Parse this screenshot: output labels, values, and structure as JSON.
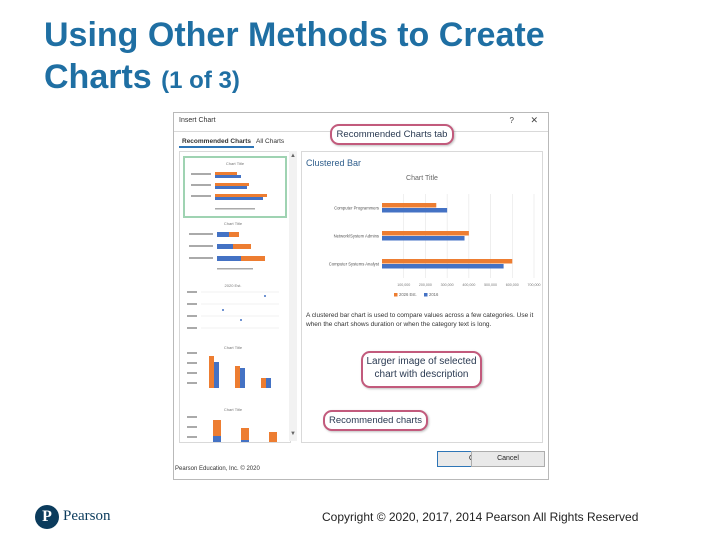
{
  "slide": {
    "title": "Using Other Methods to Create",
    "title_line2": "Charts",
    "title_suffix": "(1 of 3)"
  },
  "dialog": {
    "title": "Insert Chart",
    "help_glyph": "?",
    "close_glyph": "✕",
    "tabs": [
      {
        "label": "Recommended Charts",
        "active": true
      },
      {
        "label": "All Charts",
        "active": false
      }
    ],
    "thumbnail_titles": [
      "Chart Title",
      "Chart Title",
      "2020 Est.",
      "Chart Title",
      "Chart Title"
    ],
    "preview_heading": "Clustered Bar",
    "description": "A clustered bar chart is used to compare values across a few categories. Use it when the chart shows duration or when the category text is long.",
    "buttons": {
      "ok": "OK",
      "cancel": "Cancel"
    },
    "scroll_up": "▲",
    "scroll_down": "▼"
  },
  "chart_data": {
    "type": "bar",
    "orientation": "horizontal",
    "title": "Chart Title",
    "categories": [
      "Computer Programmers",
      "Network/System Admins",
      "Computer Systems Analyst"
    ],
    "series": [
      {
        "name": "2026 Est.",
        "color": "#ed7d31",
        "values": [
          250000,
          400000,
          600000
        ]
      },
      {
        "name": "2016",
        "color": "#4472c4",
        "values": [
          300000,
          380000,
          560000
        ]
      }
    ],
    "x_ticks": [
      "100,000",
      "200,000",
      "300,000",
      "400,000",
      "500,000",
      "600,000",
      "700,000"
    ],
    "xlim": [
      0,
      700000
    ],
    "grid": true,
    "legend_position": "bottom"
  },
  "callouts": {
    "recommended_tab": "Recommended Charts tab",
    "larger_image_line1": "Larger image of selected",
    "larger_image_line2": "chart with description",
    "recommended_charts": "Recommended charts"
  },
  "image_caption": "Pearson Education, Inc. © 2020",
  "footer": {
    "logo_letter": "P",
    "logo_word": "Pearson",
    "copyright": "Copyright © 2020, 2017, 2014 Pearson All Rights Reserved"
  },
  "colors": {
    "title_blue": "#1f6fa3",
    "callout_border": "#c25a7c",
    "series_orange": "#ed7d31",
    "series_blue": "#4472c4",
    "thumb_selected": "#9fd3b2"
  }
}
